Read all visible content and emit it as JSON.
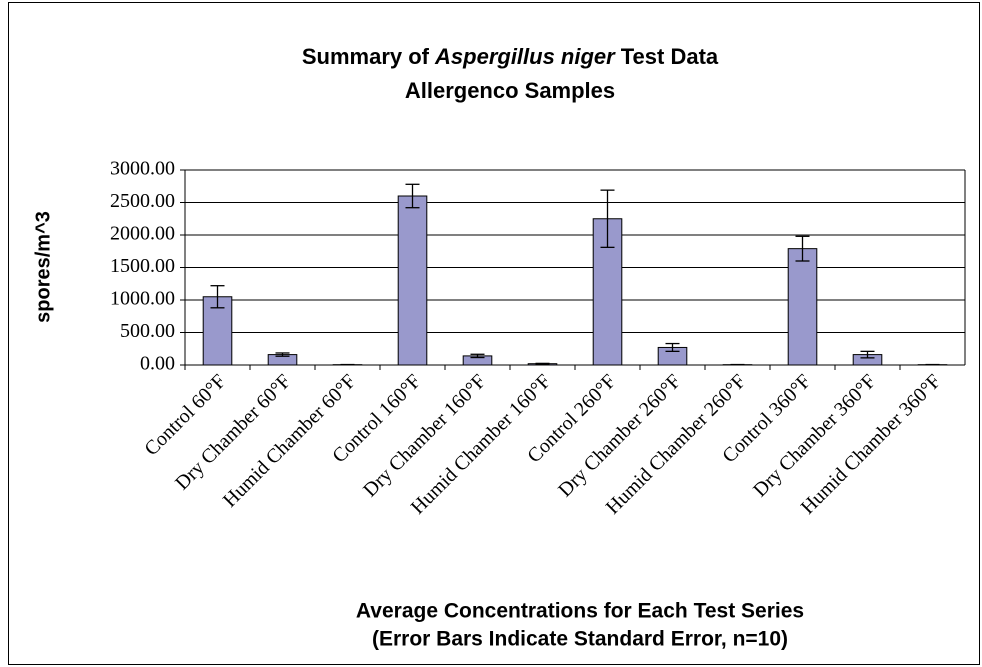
{
  "chart_data": {
    "type": "bar",
    "title": {
      "before": "Summary of",
      "italic": "Aspergillus niger",
      "after": "Test Data"
    },
    "subtitle": "Allergenco Samples",
    "y_label": "spores/m^3",
    "x_label": [
      "Average Concentrations for Each Test Series",
      "(Error Bars Indicate Standard Error, n=10)"
    ],
    "categories": [
      "Control 60°F",
      "Dry Chamber 60°F",
      "Humid Chamber 60°F",
      "Control 160°F",
      "Dry Chamber 160°F",
      "Humid Chamber 160°F",
      "Control 260°F",
      "Dry Chamber 260°F",
      "Humid Chamber 260°F",
      "Control 360°F",
      "Dry Chamber 360°F",
      "Humid Chamber 360°F"
    ],
    "values": [
      1050,
      160,
      5,
      2600,
      140,
      20,
      2250,
      270,
      5,
      1790,
      160,
      5
    ],
    "errors": [
      170,
      25,
      2,
      180,
      25,
      5,
      440,
      60,
      2,
      190,
      50,
      2
    ],
    "color": "#9999cc",
    "ylim": [
      0,
      3000
    ],
    "yticks": [
      {
        "value": 0,
        "label": "0.00"
      },
      {
        "value": 500,
        "label": "500.00"
      },
      {
        "value": 1000,
        "label": "1000.00"
      },
      {
        "value": 1500,
        "label": "1500.00"
      },
      {
        "value": 2000,
        "label": "2000.00"
      },
      {
        "value": 2500,
        "label": "2500.00"
      },
      {
        "value": 3000,
        "label": "3000.00"
      }
    ],
    "grid": true
  }
}
